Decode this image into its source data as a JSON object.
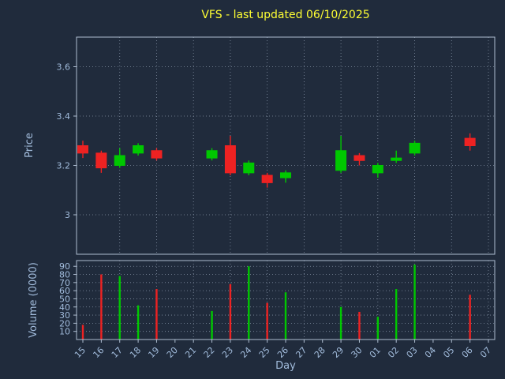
{
  "chart_data": [
    {
      "type": "candlestick",
      "title": "VFS - last updated 06/10/2025",
      "xlabel": "Day",
      "ylabel": "Price",
      "ylim": [
        2.84,
        3.72
      ],
      "yticks": [
        "3",
        "3.2",
        "3.4",
        "3.6"
      ],
      "grid": true,
      "categories": [
        "15",
        "16",
        "17",
        "18",
        "19",
        "20",
        "21",
        "22",
        "23",
        "24",
        "25",
        "26",
        "27",
        "28",
        "29",
        "30",
        "01",
        "02",
        "03",
        "04",
        "05",
        "06",
        "07"
      ],
      "series": [
        {
          "day": "15",
          "open": 3.28,
          "high": 3.3,
          "low": 3.23,
          "close": 3.25
        },
        {
          "day": "16",
          "open": 3.25,
          "high": 3.26,
          "low": 3.17,
          "close": 3.19
        },
        {
          "day": "17",
          "open": 3.2,
          "high": 3.27,
          "low": 3.19,
          "close": 3.24
        },
        {
          "day": "18",
          "open": 3.25,
          "high": 3.29,
          "low": 3.24,
          "close": 3.28
        },
        {
          "day": "19",
          "open": 3.26,
          "high": 3.27,
          "low": 3.22,
          "close": 3.23
        },
        {
          "day": "22",
          "open": 3.23,
          "high": 3.27,
          "low": 3.22,
          "close": 3.26
        },
        {
          "day": "23",
          "open": 3.28,
          "high": 3.32,
          "low": 3.16,
          "close": 3.17
        },
        {
          "day": "24",
          "open": 3.17,
          "high": 3.22,
          "low": 3.16,
          "close": 3.21
        },
        {
          "day": "25",
          "open": 3.16,
          "high": 3.17,
          "low": 3.11,
          "close": 3.13
        },
        {
          "day": "26",
          "open": 3.15,
          "high": 3.18,
          "low": 3.13,
          "close": 3.17
        },
        {
          "day": "29",
          "open": 3.18,
          "high": 3.32,
          "low": 3.17,
          "close": 3.26
        },
        {
          "day": "30",
          "open": 3.24,
          "high": 3.25,
          "low": 3.2,
          "close": 3.22
        },
        {
          "day": "01",
          "open": 3.17,
          "high": 3.21,
          "low": 3.15,
          "close": 3.2
        },
        {
          "day": "02",
          "open": 3.22,
          "high": 3.26,
          "low": 3.21,
          "close": 3.23
        },
        {
          "day": "03",
          "open": 3.25,
          "high": 3.3,
          "low": 3.24,
          "close": 3.29
        },
        {
          "day": "06",
          "open": 3.31,
          "high": 3.33,
          "low": 3.26,
          "close": 3.28
        }
      ]
    },
    {
      "type": "bar",
      "ylabel": "Volume (0000)",
      "ylim": [
        0,
        97
      ],
      "yticks": [
        "10",
        "20",
        "30",
        "40",
        "50",
        "60",
        "70",
        "80",
        "90"
      ],
      "grid": true,
      "values": [
        {
          "day": "15",
          "value": 18
        },
        {
          "day": "16",
          "value": 80
        },
        {
          "day": "17",
          "value": 78
        },
        {
          "day": "18",
          "value": 42
        },
        {
          "day": "19",
          "value": 62
        },
        {
          "day": "22",
          "value": 35
        },
        {
          "day": "23",
          "value": 68
        },
        {
          "day": "24",
          "value": 90
        },
        {
          "day": "25",
          "value": 45
        },
        {
          "day": "26",
          "value": 58
        },
        {
          "day": "29",
          "value": 40
        },
        {
          "day": "30",
          "value": 34
        },
        {
          "day": "01",
          "value": 28
        },
        {
          "day": "02",
          "value": 62
        },
        {
          "day": "03",
          "value": 92
        },
        {
          "day": "06",
          "value": 55
        }
      ]
    }
  ],
  "colors": {
    "background": "#202b3c",
    "up": "#00c800",
    "down": "#ee2222",
    "grid": "#aebdd0",
    "spine": "#aebdd0",
    "tick_text": "#a2bcdc",
    "title": "#ffff33"
  }
}
